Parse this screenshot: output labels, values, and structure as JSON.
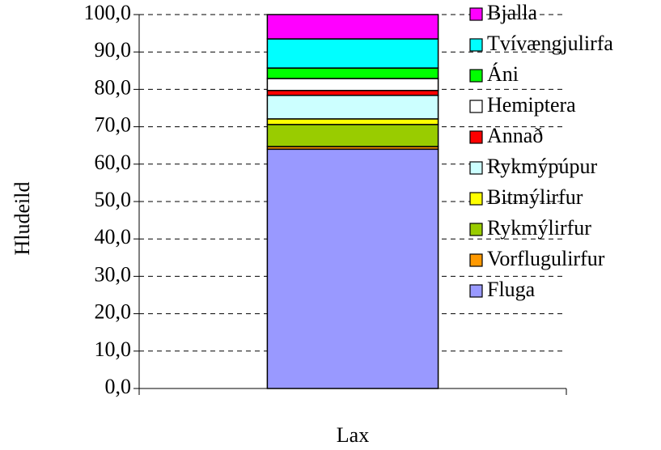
{
  "chart_data": {
    "type": "bar",
    "stacked": true,
    "y_label": "Hludeild",
    "categories": [
      "Lax"
    ],
    "series": [
      {
        "name": "Fluga",
        "color": "#9999ff",
        "values": [
          64.0
        ]
      },
      {
        "name": "Vorflugulirfur",
        "color": "#ff9900",
        "values": [
          0.7
        ]
      },
      {
        "name": "Rykmýlirfur",
        "color": "#99cc00",
        "values": [
          5.9
        ]
      },
      {
        "name": "Bitmýlirfur",
        "color": "#ffff00",
        "values": [
          1.5
        ]
      },
      {
        "name": "Rykmýpúpur",
        "color": "#ccffff",
        "values": [
          6.3
        ]
      },
      {
        "name": "Annað",
        "color": "#ff0000",
        "values": [
          1.3
        ]
      },
      {
        "name": "Hemiptera",
        "color": "#ffffff",
        "values": [
          3.2
        ]
      },
      {
        "name": "Áni",
        "color": "#00ff00",
        "values": [
          2.8
        ]
      },
      {
        "name": "Tvívængjulirfa",
        "color": "#00ffff",
        "values": [
          7.8
        ]
      },
      {
        "name": "Bjalla",
        "color": "#ff00ff",
        "values": [
          6.5
        ]
      }
    ],
    "ylim": [
      0,
      100
    ],
    "yticks": [
      {
        "value": 0,
        "label": "0,0"
      },
      {
        "value": 10,
        "label": "10,0"
      },
      {
        "value": 20,
        "label": "20,0"
      },
      {
        "value": 30,
        "label": "30,0"
      },
      {
        "value": 40,
        "label": "40,0"
      },
      {
        "value": 50,
        "label": "50,0"
      },
      {
        "value": 60,
        "label": "60,0"
      },
      {
        "value": 70,
        "label": "70,0"
      },
      {
        "value": 80,
        "label": "80,0"
      },
      {
        "value": 90,
        "label": "90,0"
      },
      {
        "value": 100,
        "label": "100,0"
      }
    ],
    "grid": true,
    "legend": "right"
  }
}
